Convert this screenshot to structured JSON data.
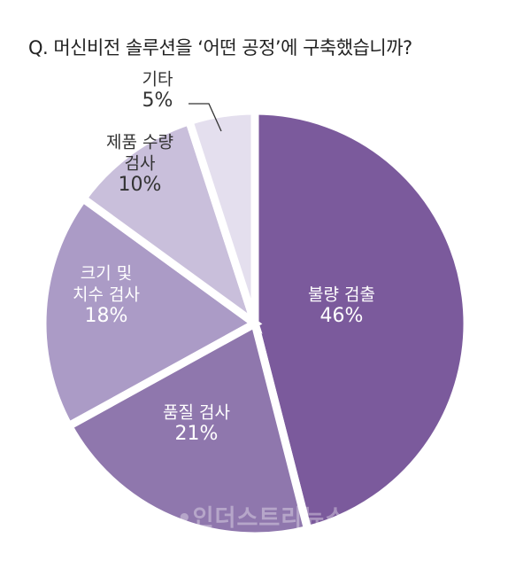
{
  "question": "Q. 머신비전 솔루션을 ‘어떤 공정’에 구축했습니까?",
  "watermark": "•인더스트리뉴스",
  "chart_data": {
    "type": "pie",
    "title": "Q. 머신비전 솔루션을 ‘어떤 공정’에 구축했습니까?",
    "unit": "%",
    "slices": [
      {
        "label_lines": [
          "불량 검출"
        ],
        "value": 46,
        "value_label": "46%",
        "color": "#7b5a9c",
        "text_color": "#ffffff"
      },
      {
        "label_lines": [
          "품질 검사"
        ],
        "value": 21,
        "value_label": "21%",
        "color": "#8f77ad",
        "text_color": "#ffffff"
      },
      {
        "label_lines": [
          "크기 및",
          "치수 검사"
        ],
        "value": 18,
        "value_label": "18%",
        "color": "#ab9bc6",
        "text_color": "#ffffff"
      },
      {
        "label_lines": [
          "제품 수량",
          "검사"
        ],
        "value": 10,
        "value_label": "10%",
        "color": "#c9bfdb",
        "text_color": "#333333"
      },
      {
        "label_lines": [
          "기타"
        ],
        "value": 5,
        "value_label": "5%",
        "color": "#e4dfee",
        "text_color": "#333333"
      }
    ],
    "start": "12 o'clock",
    "direction": "clockwise",
    "legend": "none"
  }
}
